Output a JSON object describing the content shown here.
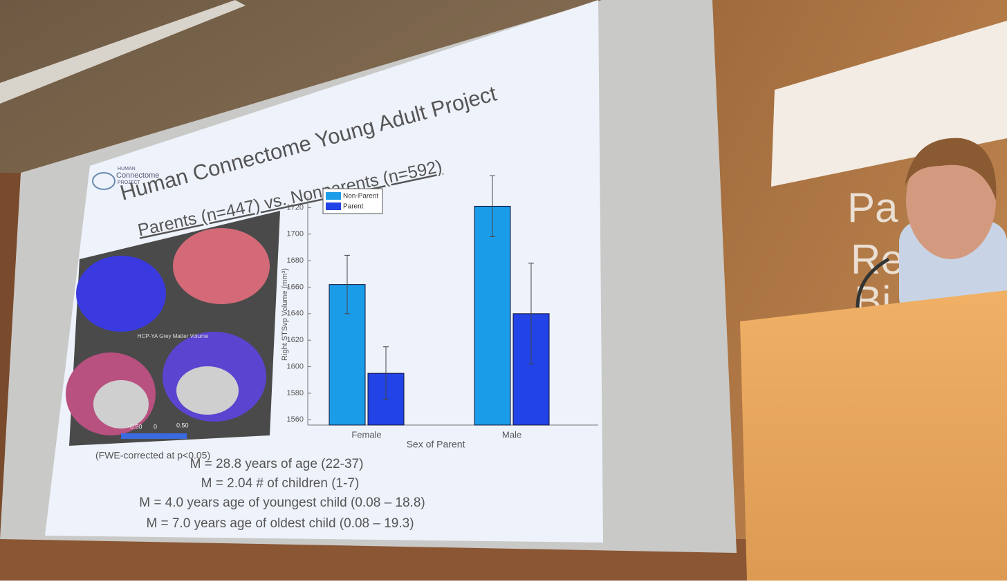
{
  "room": {
    "sign_lines": [
      "Pa",
      "Re",
      "Bi"
    ]
  },
  "slide": {
    "logo": [
      "HUMAN",
      "Connectome",
      "PROJECT"
    ],
    "title": "Human Connectome Young Adult Project",
    "subtitle": "Parents (n=447) vs. Nonparents (n=592)",
    "brain_figure": {
      "caption": "HCP-YA Grey Matter Volume",
      "colorbar_labels": [
        "-0.50",
        "0",
        "0.50"
      ]
    },
    "footnote": "(FWE-corrected at p<0.05)",
    "stats": [
      "M = 28.8 years of age (22-37)",
      "M = 2.04 # of children (1-7)",
      "M = 4.0 years age of youngest child (0.08 – 18.8)",
      "M = 7.0 years age of oldest child (0.08 – 19.3)"
    ]
  },
  "chart_data": {
    "type": "bar",
    "x_label": "Sex of Parent",
    "y_label": "Right STSvp Volume (mm³)",
    "categories": [
      "Female",
      "Male"
    ],
    "series": [
      {
        "name": "Non-Parent",
        "color": "#1b9ce8",
        "values": [
          1662,
          1721
        ],
        "errors": [
          22,
          23
        ]
      },
      {
        "name": "Parent",
        "color": "#2243e6",
        "values": [
          1595,
          1640
        ],
        "errors": [
          20,
          38
        ]
      }
    ],
    "ylim": [
      1556,
      1728
    ],
    "yticks": [
      1560,
      1580,
      1600,
      1620,
      1640,
      1660,
      1680,
      1700,
      1720
    ],
    "legend": "upper left"
  }
}
